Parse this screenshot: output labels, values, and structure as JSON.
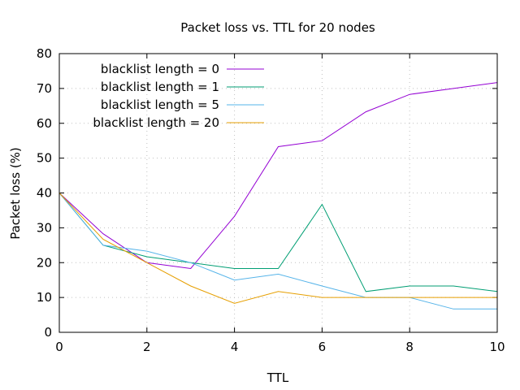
{
  "chart_data": {
    "type": "line",
    "title": "Packet loss vs. TTL for 20 nodes",
    "xlabel": "TTL",
    "ylabel": "Packet loss (%)",
    "xlim": [
      0,
      10
    ],
    "ylim": [
      0,
      80
    ],
    "xticks": [
      0,
      2,
      4,
      6,
      8,
      10
    ],
    "yticks": [
      0,
      10,
      20,
      30,
      40,
      50,
      60,
      70,
      80
    ],
    "grid": true,
    "legend_position": "top-left",
    "x": [
      0,
      1,
      2,
      3,
      4,
      5,
      6,
      7,
      8,
      9,
      10
    ],
    "series": [
      {
        "name": "blacklist length = 0",
        "color": "#9400d3",
        "values": [
          40,
          28.3,
          20,
          18.3,
          33.3,
          53.3,
          55,
          63.3,
          68.3,
          70,
          71.7
        ]
      },
      {
        "name": "blacklist length = 1",
        "color": "#009e73",
        "values": [
          40,
          25,
          21.7,
          20,
          18.3,
          18.3,
          36.7,
          11.7,
          13.3,
          13.3,
          11.7
        ]
      },
      {
        "name": "blacklist length = 5",
        "color": "#56b4e9",
        "values": [
          40,
          25,
          23.3,
          20,
          15,
          16.7,
          13.3,
          10,
          10,
          6.7,
          6.7
        ]
      },
      {
        "name": "blacklist length = 20",
        "color": "#e69f00",
        "values": [
          40,
          26.7,
          20,
          13.3,
          8.3,
          11.7,
          10,
          10,
          10,
          10,
          10
        ]
      }
    ]
  }
}
